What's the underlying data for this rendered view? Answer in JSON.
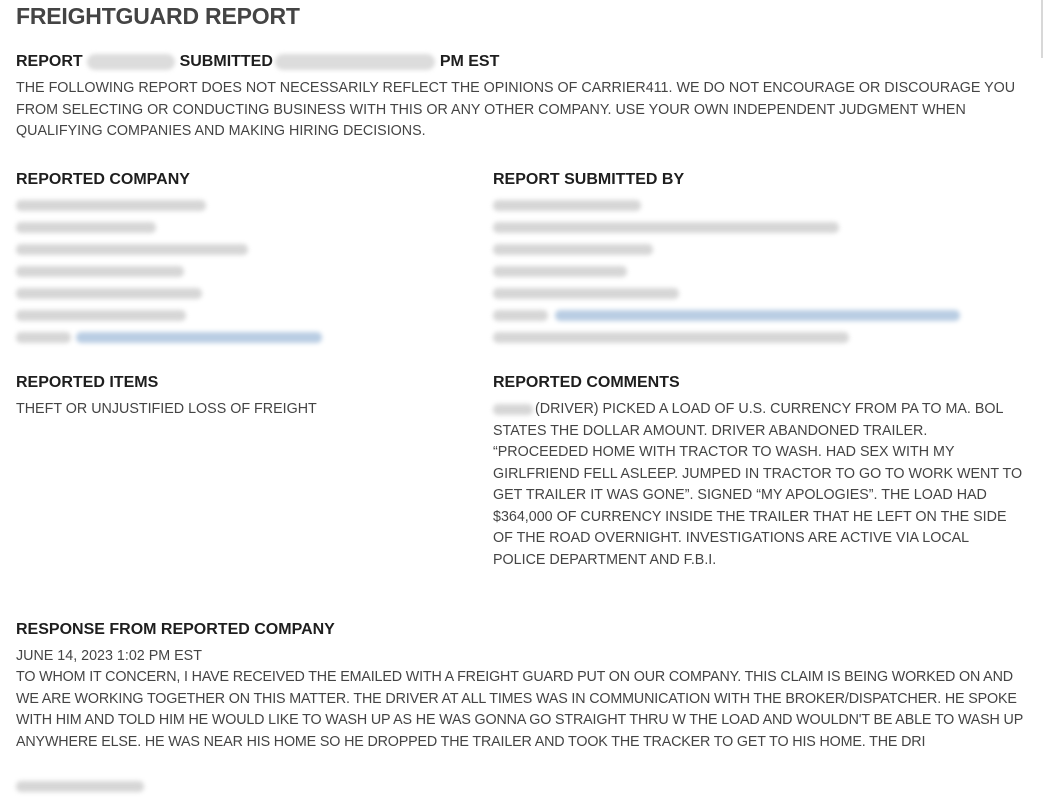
{
  "title": "FREIGHTGUARD REPORT",
  "report_line": {
    "report_label": "REPORT",
    "submitted_label": "SUBMITTED",
    "time_suffix": "PM EST"
  },
  "disclaimer": "THE FOLLOWING REPORT DOES NOT NECESSARILY REFLECT THE OPINIONS OF CARRIER411. WE DO NOT ENCOURAGE OR DISCOURAGE YOU FROM SELECTING OR CONDUCTING BUSINESS WITH THIS OR ANY OTHER COMPANY. USE YOUR OWN INDEPENDENT JUDGMENT WHEN QUALIFYING COMPANIES AND MAKING HIRING DECISIONS.",
  "reported_company": {
    "heading": "REPORTED COMPANY"
  },
  "submitted_by": {
    "heading": "REPORT SUBMITTED BY"
  },
  "reported_items": {
    "heading": "REPORTED ITEMS",
    "text": "THEFT OR UNJUSTIFIED LOSS OF FREIGHT"
  },
  "reported_comments": {
    "heading": "REPORTED COMMENTS",
    "text": "(DRIVER) PICKED A LOAD OF U.S. CURRENCY FROM PA TO MA. BOL STATES THE DOLLAR AMOUNT. DRIVER ABANDONED TRAILER. “PROCEEDED HOME WITH TRACTOR TO WASH. HAD SEX WITH MY GIRLFRIEND FELL ASLEEP. JUMPED IN TRACTOR TO GO TO WORK WENT TO GET TRAILER IT WAS GONE”. SIGNED “MY APOLOGIES”. THE LOAD HAD $364,000 OF CURRENCY INSIDE THE TRAILER THAT HE LEFT ON THE SIDE OF THE ROAD OVERNIGHT. INVESTIGATIONS ARE ACTIVE VIA LOCAL POLICE DEPARTMENT AND F.B.I."
  },
  "response": {
    "heading": "RESPONSE FROM REPORTED COMPANY",
    "date": "JUNE 14, 2023 1:02 PM EST",
    "text": "TO WHOM IT CONCERN, I HAVE RECEIVED THE EMAILED WITH A FREIGHT GUARD PUT ON OUR COMPANY. THIS CLAIM IS BEING WORKED ON AND WE ARE WORKING TOGETHER ON THIS MATTER. THE DRIVER AT ALL TIMES WAS IN COMMUNICATION WITH THE BROKER/DISPATCHER. HE SPOKE WITH HIM AND TOLD HIM HE WOULD LIKE TO WASH UP AS HE WAS GONNA GO STRAIGHT THRU W THE LOAD AND WOULDN'T BE ABLE TO WASH UP ANYWHERE ELSE. HE WAS NEAR HIS HOME SO HE DROPPED THE TRAILER AND TOOK THE TRACKER TO GET TO HIS HOME. THE DRI"
  },
  "colors": {
    "text": "#444444",
    "heading": "#1e1e1e",
    "link": "#3a6fb0"
  }
}
